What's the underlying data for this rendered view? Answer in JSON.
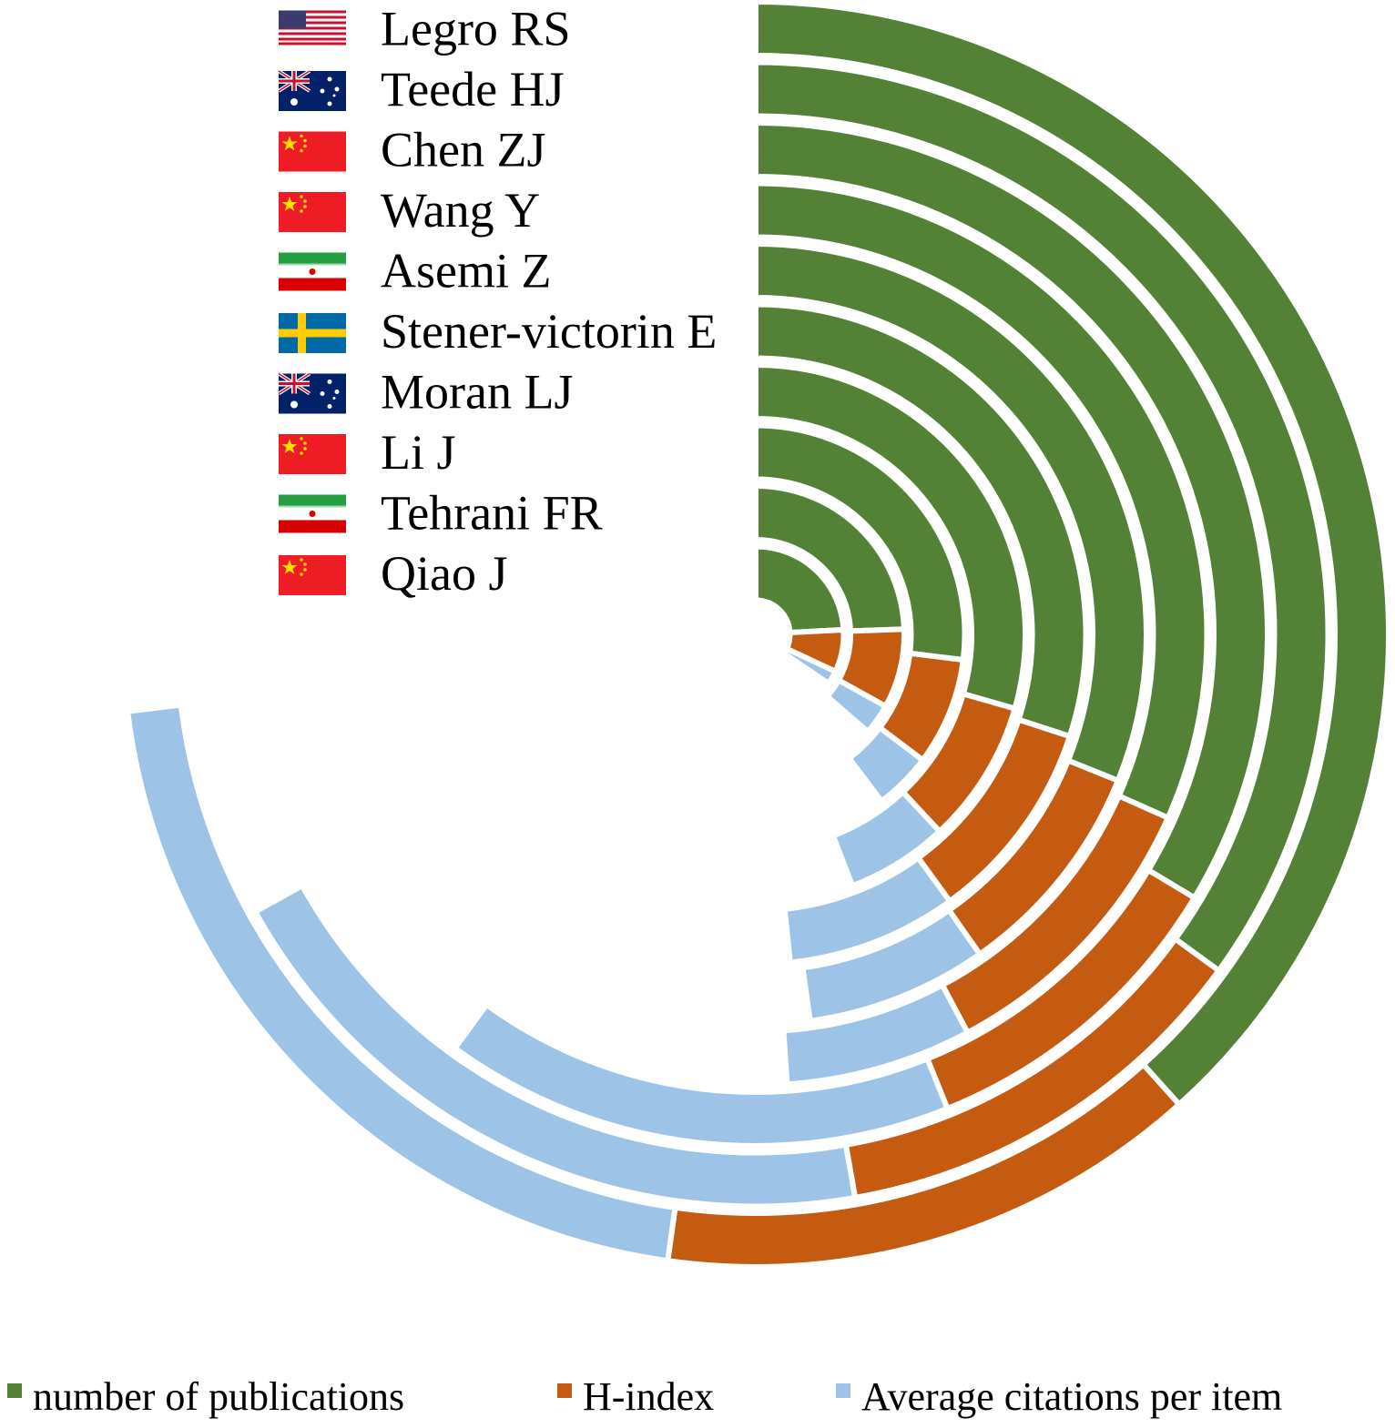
{
  "chart_data": {
    "type": "radial-stacked-bar",
    "title": "",
    "authors": [
      {
        "name": "Legro RS",
        "flag": "usa-flag"
      },
      {
        "name": "Teede HJ",
        "flag": "australia-flag"
      },
      {
        "name": "Chen ZJ",
        "flag": "china-flag"
      },
      {
        "name": "Wang Y",
        "flag": "china-flag"
      },
      {
        "name": "Asemi Z",
        "flag": "iran-flag"
      },
      {
        "name": "Stener-victorin E",
        "flag": "sweden-flag"
      },
      {
        "name": "Moran LJ",
        "flag": "australia-flag"
      },
      {
        "name": "Li J",
        "flag": "china-flag"
      },
      {
        "name": "Tehrani FR",
        "flag": "iran-flag"
      },
      {
        "name": "Qiao J",
        "flag": "china-flag"
      }
    ],
    "series": [
      {
        "name": "number of publications",
        "color": "#538135",
        "values": [
          138,
          126,
          121,
          114,
          112,
          108,
          106,
          97,
          88,
          87
        ]
      },
      {
        "name": "H-index",
        "color": "#c55a11",
        "values": [
          50,
          44,
          37,
          38,
          33,
          36,
          31,
          30,
          31,
          28
        ]
      },
      {
        "name": "Average citations per item",
        "color": "#9dc3e6",
        "values": [
          75,
          71,
          58,
          24,
          27,
          30,
          22,
          16,
          12,
          9
        ]
      }
    ],
    "legend_position": "bottom"
  }
}
